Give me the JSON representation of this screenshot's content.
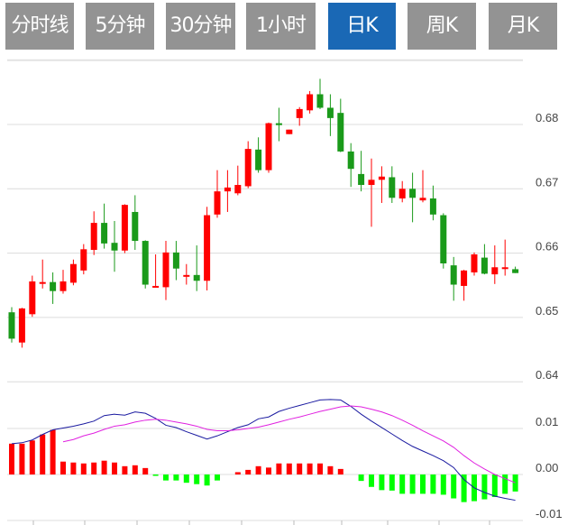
{
  "tabs": [
    {
      "label": "分时线",
      "active": false
    },
    {
      "label": "5分钟",
      "active": false
    },
    {
      "label": "30分钟",
      "active": false
    },
    {
      "label": "1小时",
      "active": false
    },
    {
      "label": "日K",
      "active": true
    },
    {
      "label": "周K",
      "active": false
    },
    {
      "label": "月K",
      "active": false
    }
  ],
  "colors": {
    "tab_bg": "#939393",
    "tab_active": "#1a68b5",
    "up": "#ff0000",
    "down": "#1a9a1a",
    "hist_up": "#ff0000",
    "hist_down": "#00ff00",
    "dif": "#1a1aa0",
    "dea": "#e020e0"
  },
  "chart_data": [
    {
      "type": "candlestick",
      "y_ticks": [
        "0.68",
        "0.67",
        "0.66",
        "0.65",
        "0.64"
      ],
      "ylim": [
        0.64,
        0.69
      ],
      "grid": true,
      "ohlc": [
        [
          0.6508,
          0.6516,
          0.6461,
          0.6467
        ],
        [
          0.6461,
          0.6515,
          0.6453,
          0.6514
        ],
        [
          0.6505,
          0.6565,
          0.6501,
          0.6556
        ],
        [
          0.6553,
          0.659,
          0.6545,
          0.6555
        ],
        [
          0.6555,
          0.657,
          0.6521,
          0.6541
        ],
        [
          0.6541,
          0.6574,
          0.6537,
          0.6556
        ],
        [
          0.6554,
          0.659,
          0.655,
          0.6583
        ],
        [
          0.6573,
          0.6614,
          0.6567,
          0.6606
        ],
        [
          0.6605,
          0.6665,
          0.6597,
          0.6647
        ],
        [
          0.6647,
          0.6677,
          0.6607,
          0.6615
        ],
        [
          0.6616,
          0.665,
          0.6571,
          0.6604
        ],
        [
          0.6604,
          0.6676,
          0.66,
          0.6675
        ],
        [
          0.6664,
          0.669,
          0.6605,
          0.6619
        ],
        [
          0.6619,
          0.662,
          0.6545,
          0.6551
        ],
        [
          0.6547,
          0.6598,
          0.6547,
          0.6549
        ],
        [
          0.6547,
          0.6619,
          0.6527,
          0.6601
        ],
        [
          0.6601,
          0.6619,
          0.6558,
          0.6576
        ],
        [
          0.6564,
          0.6583,
          0.6551,
          0.6566
        ],
        [
          0.6566,
          0.6612,
          0.6541,
          0.6557
        ],
        [
          0.6557,
          0.6672,
          0.6542,
          0.6659
        ],
        [
          0.666,
          0.6729,
          0.6655,
          0.6696
        ],
        [
          0.6696,
          0.6729,
          0.6664,
          0.6702
        ],
        [
          0.6693,
          0.6736,
          0.669,
          0.6706
        ],
        [
          0.6704,
          0.6774,
          0.6701,
          0.6762
        ],
        [
          0.6761,
          0.678,
          0.6725,
          0.6729
        ],
        [
          0.6729,
          0.6803,
          0.6725,
          0.6802
        ],
        [
          0.6802,
          0.6826,
          0.6774,
          0.6799
        ],
        [
          0.6785,
          0.6792,
          0.6785,
          0.6792
        ],
        [
          0.681,
          0.6827,
          0.6798,
          0.6824
        ],
        [
          0.6822,
          0.6852,
          0.6817,
          0.6847
        ],
        [
          0.6847,
          0.6871,
          0.6824,
          0.6826
        ],
        [
          0.6826,
          0.6847,
          0.6782,
          0.681
        ],
        [
          0.6818,
          0.684,
          0.6757,
          0.6758
        ],
        [
          0.6758,
          0.6771,
          0.6703,
          0.6731
        ],
        [
          0.6723,
          0.6759,
          0.6696,
          0.6706
        ],
        [
          0.6706,
          0.6747,
          0.6641,
          0.6714
        ],
        [
          0.6714,
          0.6735,
          0.6678,
          0.6719
        ],
        [
          0.6718,
          0.6735,
          0.6678,
          0.6686
        ],
        [
          0.6685,
          0.6712,
          0.6679,
          0.67
        ],
        [
          0.67,
          0.6725,
          0.6648,
          0.6686
        ],
        [
          0.6682,
          0.6729,
          0.6679,
          0.6686
        ],
        [
          0.6685,
          0.6705,
          0.6651,
          0.666
        ],
        [
          0.6659,
          0.6662,
          0.6576,
          0.6584
        ],
        [
          0.6581,
          0.6594,
          0.6526,
          0.6551
        ],
        [
          0.6549,
          0.6574,
          0.6526,
          0.6573
        ],
        [
          0.657,
          0.6601,
          0.6565,
          0.6598
        ],
        [
          0.6593,
          0.6614,
          0.6567,
          0.6568
        ],
        [
          0.6567,
          0.6612,
          0.6552,
          0.6578
        ],
        [
          0.6576,
          0.6621,
          0.6565,
          0.6578
        ],
        [
          0.6575,
          0.6579,
          0.6569,
          0.6569
        ]
      ]
    },
    {
      "type": "macd",
      "y_ticks": [
        "0.01",
        "0.00",
        "-0.01"
      ],
      "ylim": [
        -0.01,
        0.02
      ],
      "grid": true,
      "histogram": [
        0.0067,
        0.0067,
        0.0074,
        0.0087,
        0.0097,
        0.0028,
        0.0026,
        0.0024,
        0.0026,
        0.003,
        0.0026,
        0.0018,
        0.002,
        0.0014,
        -0.0003,
        -0.0013,
        -0.0013,
        -0.0018,
        -0.0021,
        -0.0024,
        -0.0013,
        0,
        0.0005,
        0.001,
        0.0018,
        0.0015,
        0.0024,
        0.0024,
        0.0024,
        0.0024,
        0.0024,
        0.0018,
        0.0012,
        0,
        -0.0014,
        -0.0027,
        -0.0034,
        -0.0035,
        -0.0042,
        -0.0042,
        -0.0042,
        -0.0042,
        -0.0044,
        -0.0052,
        -0.006,
        -0.0058,
        -0.0054,
        -0.0049,
        -0.0042,
        -0.0037
      ],
      "dif": [
        0.0067,
        0.0069,
        0.0075,
        0.0087,
        0.0097,
        0.0101,
        0.0105,
        0.011,
        0.0116,
        0.0128,
        0.0131,
        0.0129,
        0.0136,
        0.0133,
        0.0122,
        0.0107,
        0.0102,
        0.0093,
        0.0085,
        0.0077,
        0.0084,
        0.0093,
        0.0102,
        0.0108,
        0.0121,
        0.0125,
        0.0137,
        0.0144,
        0.015,
        0.0156,
        0.0162,
        0.0163,
        0.0162,
        0.0148,
        0.0131,
        0.0116,
        0.0102,
        0.0088,
        0.0074,
        0.0061,
        0.0051,
        0.0041,
        0.003,
        0.0015,
        -0.0011,
        -0.0029,
        -0.0039,
        -0.0047,
        -0.0052,
        -0.0056
      ],
      "dea": [
        null,
        null,
        null,
        null,
        null,
        0.0071,
        0.0076,
        0.0084,
        0.009,
        0.0098,
        0.0105,
        0.0108,
        0.0114,
        0.0118,
        0.012,
        0.0118,
        0.0114,
        0.011,
        0.0105,
        0.0098,
        0.0095,
        0.0095,
        0.0097,
        0.01,
        0.0103,
        0.0108,
        0.0114,
        0.012,
        0.0125,
        0.0131,
        0.0137,
        0.0142,
        0.0147,
        0.0149,
        0.0147,
        0.0142,
        0.0136,
        0.0128,
        0.0118,
        0.0107,
        0.0095,
        0.0084,
        0.0073,
        0.0059,
        0.0041,
        0.0025,
        0.0012,
        0.0,
        -0.0009,
        -0.0018
      ]
    }
  ]
}
